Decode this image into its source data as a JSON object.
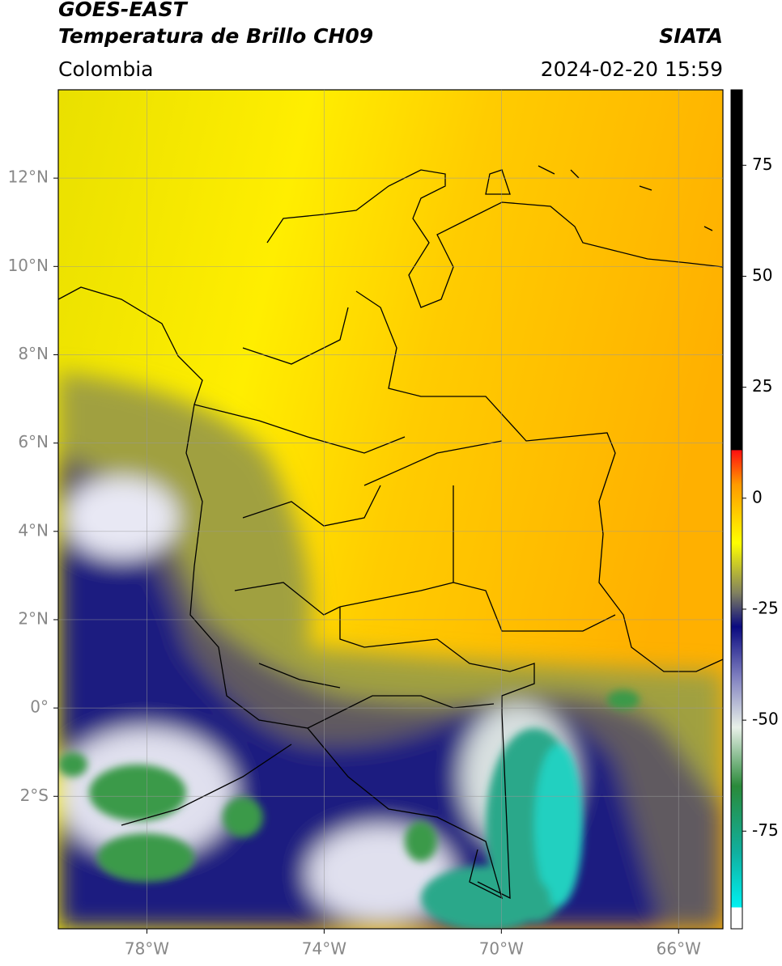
{
  "header": {
    "satellite": "GOES-EAST",
    "product": "Temperatura de Brillo CH09",
    "source": "SIATA",
    "region": "Colombia",
    "datetime": "2024-02-20 15:59"
  },
  "map": {
    "lonlim": [
      -80,
      -65
    ],
    "latlim": [
      -5,
      14
    ],
    "lon_ticks": [
      {
        "value": -78,
        "label": "78°W"
      },
      {
        "value": -74,
        "label": "74°W"
      },
      {
        "value": -70,
        "label": "70°W"
      },
      {
        "value": -66,
        "label": "66°W"
      }
    ],
    "lat_ticks": [
      {
        "value": 12,
        "label": "12°N"
      },
      {
        "value": 10,
        "label": "10°N"
      },
      {
        "value": 8,
        "label": "8°N"
      },
      {
        "value": 6,
        "label": "6°N"
      },
      {
        "value": 4,
        "label": "4°N"
      },
      {
        "value": 2,
        "label": "2°N"
      },
      {
        "value": 0,
        "label": "0°"
      },
      {
        "value": -2,
        "label": "2°S"
      }
    ]
  },
  "colorbar": {
    "lim": [
      -97,
      92
    ],
    "ticks": [
      75,
      50,
      25,
      0,
      -25,
      -50,
      -75
    ]
  }
}
